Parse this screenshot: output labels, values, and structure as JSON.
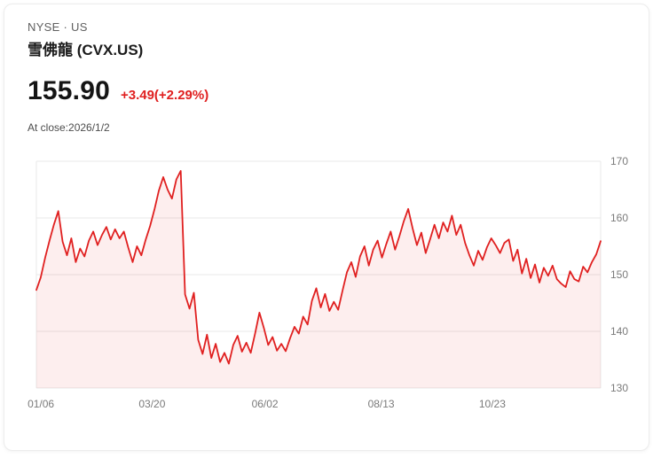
{
  "header": {
    "exchange_line": "NYSE · US",
    "title": "雪佛龍 (CVX.US)",
    "price": "155.90",
    "change": "+3.49(+2.29%)",
    "as_of": "At close:2026/1/2"
  },
  "colors": {
    "price_up_red": "#e02020",
    "text_primary": "#1b1b1b",
    "text_secondary": "#5f5f5f"
  },
  "chart_data": {
    "type": "area",
    "title": "",
    "xlabel": "",
    "ylabel": "",
    "grid": true,
    "legend": false,
    "ylim": [
      130,
      170
    ],
    "y_ticks": [
      130,
      140,
      150,
      160,
      170
    ],
    "x_tick_labels": [
      {
        "label": "01/06",
        "pos": 0.008
      },
      {
        "label": "03/20",
        "pos": 0.205
      },
      {
        "label": "06/02",
        "pos": 0.405
      },
      {
        "label": "08/13",
        "pos": 0.611
      },
      {
        "label": "10/23",
        "pos": 0.808
      }
    ],
    "line_color": "#e02020",
    "fill_color": "rgba(224, 32, 32, 0.08)",
    "grid_color": "#e8e8e8",
    "axis_label_color": "#7a7a7a",
    "values": [
      147.3,
      149.5,
      153.0,
      156.0,
      158.8,
      161.2,
      155.8,
      153.4,
      156.4,
      152.2,
      154.6,
      153.2,
      156.0,
      157.6,
      155.2,
      157.0,
      158.4,
      156.2,
      158.0,
      156.4,
      157.6,
      154.8,
      152.2,
      155.0,
      153.4,
      156.2,
      158.6,
      161.5,
      164.8,
      167.2,
      165.0,
      163.4,
      166.8,
      168.3,
      146.5,
      144.0,
      146.8,
      138.5,
      136.0,
      139.4,
      135.3,
      137.8,
      134.6,
      136.2,
      134.3,
      137.6,
      139.2,
      136.4,
      138.0,
      136.2,
      139.6,
      143.3,
      140.6,
      137.6,
      139.0,
      136.6,
      137.8,
      136.5,
      138.8,
      140.8,
      139.6,
      142.6,
      141.2,
      145.4,
      147.6,
      144.2,
      146.6,
      143.6,
      145.2,
      143.8,
      147.2,
      150.4,
      152.2,
      149.6,
      153.2,
      155.0,
      151.6,
      154.4,
      156.0,
      153.0,
      155.4,
      157.6,
      154.4,
      156.8,
      159.4,
      161.6,
      158.2,
      155.2,
      157.4,
      153.8,
      156.2,
      158.8,
      156.4,
      159.2,
      157.6,
      160.4,
      157.0,
      158.8,
      155.6,
      153.4,
      151.6,
      154.2,
      152.6,
      154.8,
      156.4,
      155.2,
      153.8,
      155.6,
      156.2,
      152.4,
      154.4,
      150.2,
      152.8,
      149.4,
      151.8,
      148.6,
      151.2,
      149.8,
      151.6,
      149.2,
      148.4,
      147.8,
      150.6,
      149.2,
      148.8,
      151.4,
      150.4,
      152.2,
      153.6,
      155.9
    ]
  }
}
